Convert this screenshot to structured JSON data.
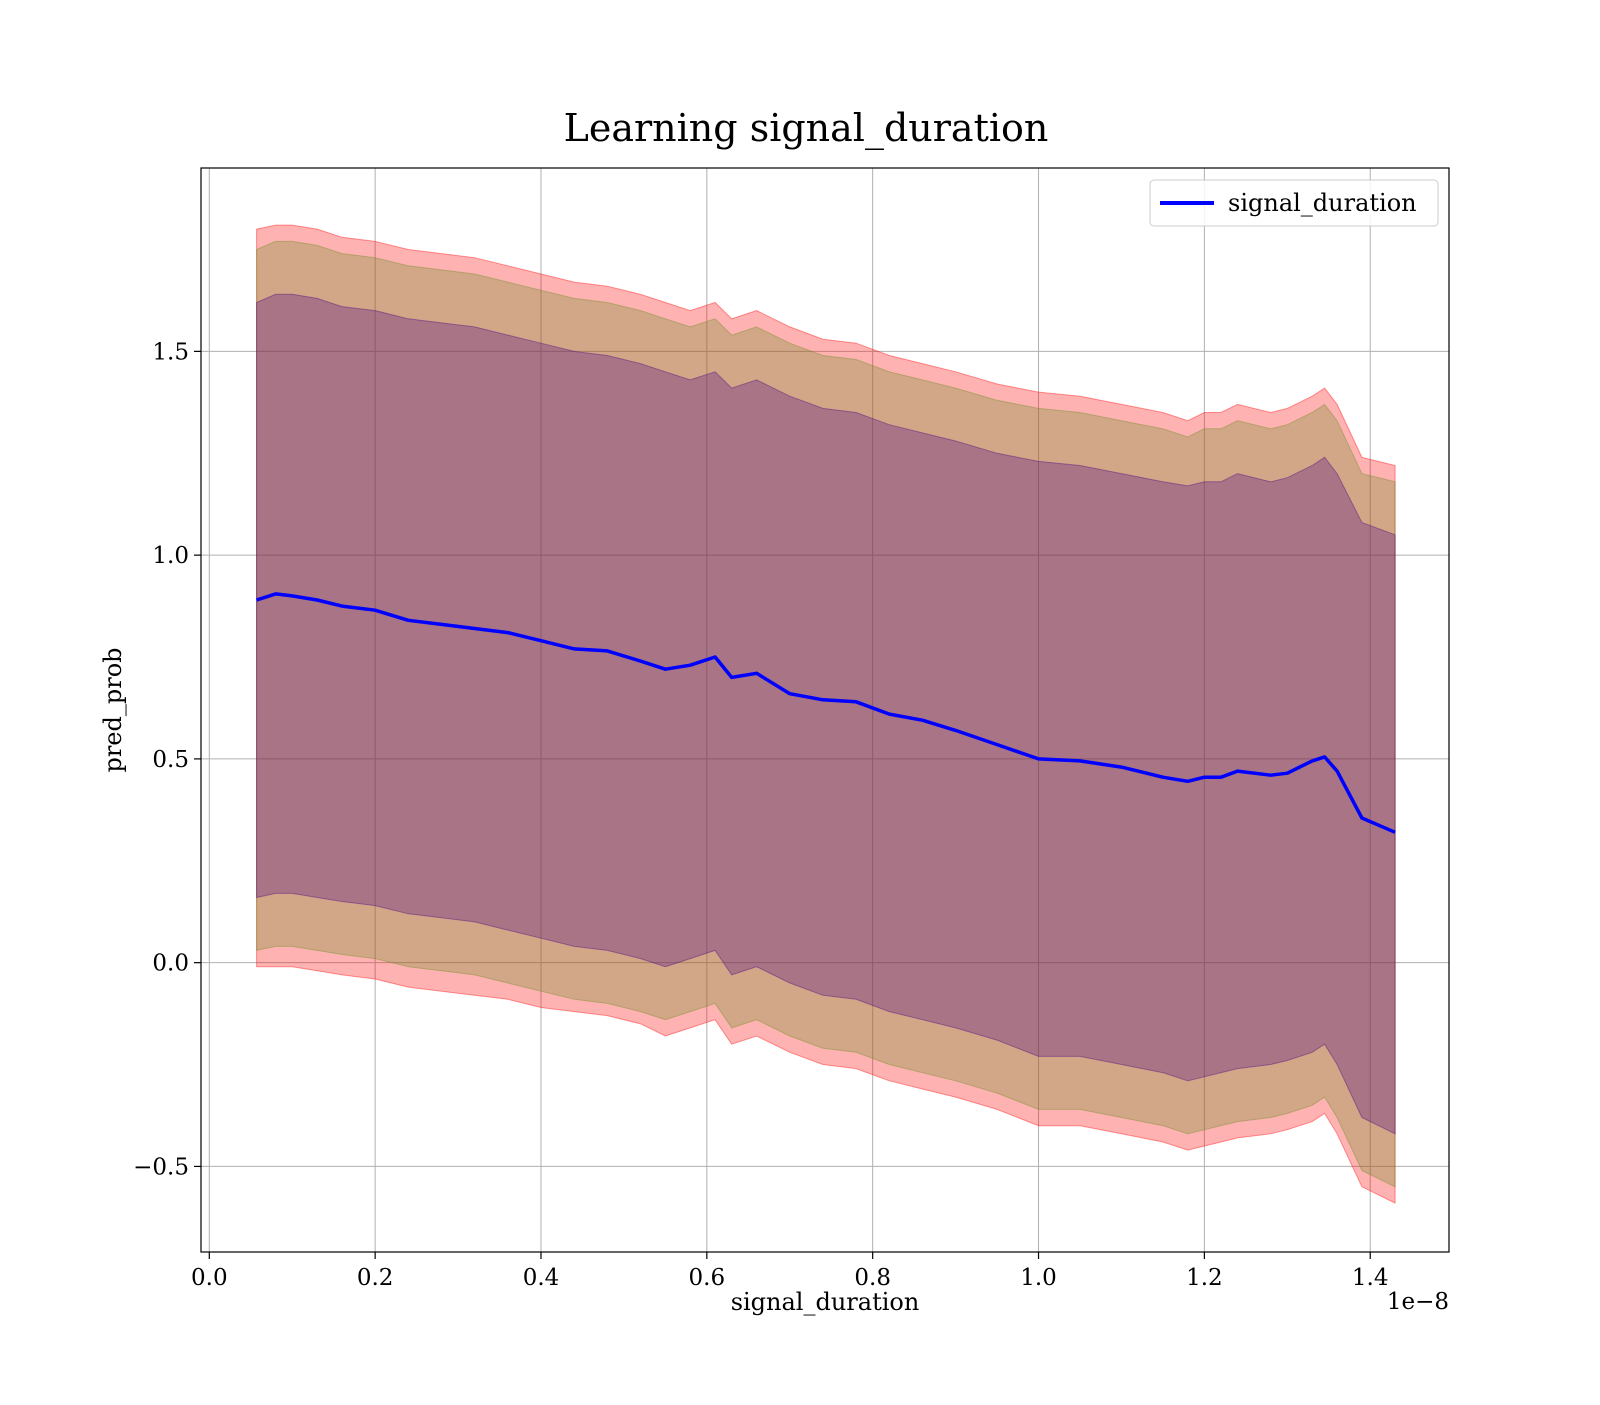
{
  "chart_data": {
    "type": "line",
    "title": "Learning signal_duration",
    "xlabel": "signal_duration",
    "ylabel": "pred_prob",
    "x_offset_label": "1e−8",
    "xlim": [
      -0.01,
      1.495
    ],
    "ylim": [
      -0.71,
      1.95
    ],
    "xticks": [
      0.0,
      0.2,
      0.4,
      0.6,
      0.8,
      1.0,
      1.2,
      1.4
    ],
    "xtick_labels": [
      "0.0",
      "0.2",
      "0.4",
      "0.6",
      "0.8",
      "1.0",
      "1.2",
      "1.4"
    ],
    "yticks": [
      -0.5,
      0.0,
      0.5,
      1.0,
      1.5
    ],
    "ytick_labels": [
      "−0.5",
      "0.0",
      "0.5",
      "1.0",
      "1.5"
    ],
    "grid": true,
    "legend_position": "top-right",
    "colors": {
      "line": "#0000ff",
      "band_outer": "#ff0000",
      "band_middle": "#6b8e23",
      "band_inner": "#4b0082"
    },
    "series": [
      {
        "name": "signal_duration",
        "x": [
          0.057,
          0.08,
          0.1,
          0.13,
          0.16,
          0.2,
          0.24,
          0.28,
          0.32,
          0.36,
          0.4,
          0.44,
          0.48,
          0.52,
          0.55,
          0.58,
          0.61,
          0.63,
          0.66,
          0.7,
          0.74,
          0.78,
          0.82,
          0.86,
          0.9,
          0.95,
          1.0,
          1.05,
          1.1,
          1.15,
          1.18,
          1.2,
          1.22,
          1.24,
          1.28,
          1.3,
          1.33,
          1.345,
          1.36,
          1.39,
          1.43
        ],
        "values": [
          0.89,
          0.905,
          0.9,
          0.89,
          0.875,
          0.865,
          0.84,
          0.83,
          0.82,
          0.81,
          0.79,
          0.77,
          0.765,
          0.74,
          0.72,
          0.73,
          0.75,
          0.7,
          0.71,
          0.66,
          0.645,
          0.64,
          0.61,
          0.595,
          0.57,
          0.535,
          0.5,
          0.495,
          0.48,
          0.455,
          0.445,
          0.455,
          0.455,
          0.47,
          0.46,
          0.465,
          0.495,
          0.505,
          0.47,
          0.355,
          0.32
        ]
      }
    ],
    "bands": [
      {
        "role": "outer",
        "x": [
          0.057,
          0.08,
          0.1,
          0.13,
          0.16,
          0.2,
          0.24,
          0.28,
          0.32,
          0.36,
          0.4,
          0.44,
          0.48,
          0.52,
          0.55,
          0.58,
          0.61,
          0.63,
          0.66,
          0.7,
          0.74,
          0.78,
          0.82,
          0.86,
          0.9,
          0.95,
          1.0,
          1.05,
          1.1,
          1.15,
          1.18,
          1.2,
          1.22,
          1.24,
          1.28,
          1.3,
          1.33,
          1.345,
          1.36,
          1.39,
          1.43
        ],
        "upper": [
          1.8,
          1.81,
          1.81,
          1.8,
          1.78,
          1.77,
          1.75,
          1.74,
          1.73,
          1.71,
          1.69,
          1.67,
          1.66,
          1.64,
          1.62,
          1.6,
          1.62,
          1.58,
          1.6,
          1.56,
          1.53,
          1.52,
          1.49,
          1.47,
          1.45,
          1.42,
          1.4,
          1.39,
          1.37,
          1.35,
          1.33,
          1.35,
          1.35,
          1.37,
          1.35,
          1.36,
          1.39,
          1.41,
          1.37,
          1.24,
          1.22
        ],
        "lower": [
          -0.01,
          -0.01,
          -0.01,
          -0.02,
          -0.03,
          -0.04,
          -0.06,
          -0.07,
          -0.08,
          -0.09,
          -0.11,
          -0.12,
          -0.13,
          -0.15,
          -0.18,
          -0.16,
          -0.14,
          -0.2,
          -0.18,
          -0.22,
          -0.25,
          -0.26,
          -0.29,
          -0.31,
          -0.33,
          -0.36,
          -0.4,
          -0.4,
          -0.42,
          -0.44,
          -0.46,
          -0.45,
          -0.44,
          -0.43,
          -0.42,
          -0.41,
          -0.39,
          -0.37,
          -0.42,
          -0.55,
          -0.59
        ]
      },
      {
        "role": "middle",
        "x": [
          0.057,
          0.08,
          0.1,
          0.13,
          0.16,
          0.2,
          0.24,
          0.28,
          0.32,
          0.36,
          0.4,
          0.44,
          0.48,
          0.52,
          0.55,
          0.58,
          0.61,
          0.63,
          0.66,
          0.7,
          0.74,
          0.78,
          0.82,
          0.86,
          0.9,
          0.95,
          1.0,
          1.05,
          1.1,
          1.15,
          1.18,
          1.2,
          1.22,
          1.24,
          1.28,
          1.3,
          1.33,
          1.345,
          1.36,
          1.39,
          1.43
        ],
        "upper": [
          1.75,
          1.77,
          1.77,
          1.76,
          1.74,
          1.73,
          1.71,
          1.7,
          1.69,
          1.67,
          1.65,
          1.63,
          1.62,
          1.6,
          1.58,
          1.56,
          1.58,
          1.54,
          1.56,
          1.52,
          1.49,
          1.48,
          1.45,
          1.43,
          1.41,
          1.38,
          1.36,
          1.35,
          1.33,
          1.31,
          1.29,
          1.31,
          1.31,
          1.33,
          1.31,
          1.32,
          1.35,
          1.37,
          1.33,
          1.2,
          1.18
        ],
        "lower": [
          0.03,
          0.04,
          0.04,
          0.03,
          0.02,
          0.01,
          -0.01,
          -0.02,
          -0.03,
          -0.05,
          -0.07,
          -0.09,
          -0.1,
          -0.12,
          -0.14,
          -0.12,
          -0.1,
          -0.16,
          -0.14,
          -0.18,
          -0.21,
          -0.22,
          -0.25,
          -0.27,
          -0.29,
          -0.32,
          -0.36,
          -0.36,
          -0.38,
          -0.4,
          -0.42,
          -0.41,
          -0.4,
          -0.39,
          -0.38,
          -0.37,
          -0.35,
          -0.33,
          -0.38,
          -0.51,
          -0.55
        ]
      },
      {
        "role": "inner",
        "x": [
          0.057,
          0.08,
          0.1,
          0.13,
          0.16,
          0.2,
          0.24,
          0.28,
          0.32,
          0.36,
          0.4,
          0.44,
          0.48,
          0.52,
          0.55,
          0.58,
          0.61,
          0.63,
          0.66,
          0.7,
          0.74,
          0.78,
          0.82,
          0.86,
          0.9,
          0.95,
          1.0,
          1.05,
          1.1,
          1.15,
          1.18,
          1.2,
          1.22,
          1.24,
          1.28,
          1.3,
          1.33,
          1.345,
          1.36,
          1.39,
          1.43
        ],
        "upper": [
          1.62,
          1.64,
          1.64,
          1.63,
          1.61,
          1.6,
          1.58,
          1.57,
          1.56,
          1.54,
          1.52,
          1.5,
          1.49,
          1.47,
          1.45,
          1.43,
          1.45,
          1.41,
          1.43,
          1.39,
          1.36,
          1.35,
          1.32,
          1.3,
          1.28,
          1.25,
          1.23,
          1.22,
          1.2,
          1.18,
          1.17,
          1.18,
          1.18,
          1.2,
          1.18,
          1.19,
          1.22,
          1.24,
          1.2,
          1.08,
          1.05
        ],
        "lower": [
          0.16,
          0.17,
          0.17,
          0.16,
          0.15,
          0.14,
          0.12,
          0.11,
          0.1,
          0.08,
          0.06,
          0.04,
          0.03,
          0.01,
          -0.01,
          0.01,
          0.03,
          -0.03,
          -0.01,
          -0.05,
          -0.08,
          -0.09,
          -0.12,
          -0.14,
          -0.16,
          -0.19,
          -0.23,
          -0.23,
          -0.25,
          -0.27,
          -0.29,
          -0.28,
          -0.27,
          -0.26,
          -0.25,
          -0.24,
          -0.22,
          -0.2,
          -0.25,
          -0.38,
          -0.42
        ]
      }
    ]
  }
}
